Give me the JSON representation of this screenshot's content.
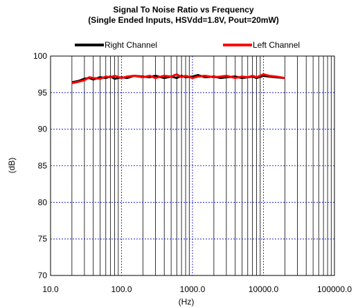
{
  "chart_data": {
    "type": "line",
    "title": "Signal To Noise Ratio vs Frequency",
    "subtitle": "(Single Ended Inputs, HSVdd=1.8V, Pout=20mW)",
    "xlabel": "(Hz)",
    "ylabel": "(dB)",
    "x_scale": "log",
    "xlim": [
      10,
      100000
    ],
    "ylim": [
      70,
      100
    ],
    "x_ticks": [
      "10.0",
      "100.0",
      "1000.0",
      "10000.0",
      "100000.0"
    ],
    "y_ticks": [
      "70",
      "75",
      "80",
      "85",
      "90",
      "95",
      "100"
    ],
    "grid": true,
    "legend_position": "top",
    "series": [
      {
        "name": "Right Channel",
        "color": "#000000",
        "x": [
          20,
          25,
          30,
          35,
          40,
          50,
          60,
          70,
          80,
          100,
          120,
          150,
          200,
          250,
          300,
          400,
          500,
          600,
          700,
          800,
          1000,
          1200,
          1500,
          2000,
          2500,
          3000,
          4000,
          5000,
          6000,
          7000,
          8000,
          10000,
          12000,
          15000,
          20000
        ],
        "y": [
          96.4,
          96.6,
          96.9,
          97.0,
          96.8,
          97.1,
          97.0,
          97.2,
          96.9,
          97.1,
          97.0,
          97.3,
          97.2,
          97.1,
          97.3,
          97.0,
          97.2,
          97.0,
          97.3,
          97.1,
          97.2,
          97.4,
          97.1,
          97.2,
          97.0,
          97.1,
          97.2,
          97.0,
          97.1,
          97.2,
          97.0,
          97.3,
          97.2,
          97.1,
          97.0
        ]
      },
      {
        "name": "Left Channel",
        "color": "#ff0000",
        "x": [
          20,
          25,
          30,
          35,
          40,
          50,
          60,
          70,
          80,
          100,
          120,
          150,
          200,
          250,
          300,
          400,
          500,
          600,
          700,
          800,
          1000,
          1200,
          1500,
          2000,
          2500,
          3000,
          4000,
          5000,
          6000,
          7000,
          8000,
          10000,
          12000,
          15000,
          20000
        ],
        "y": [
          96.3,
          96.5,
          96.7,
          97.1,
          97.0,
          96.9,
          97.2,
          97.1,
          97.3,
          97.0,
          97.2,
          97.3,
          97.1,
          97.3,
          97.0,
          97.3,
          97.2,
          97.5,
          97.1,
          97.3,
          97.0,
          97.2,
          97.3,
          97.1,
          97.2,
          97.3,
          97.0,
          97.2,
          97.1,
          97.3,
          97.1,
          97.5,
          97.3,
          97.2,
          97.0
        ]
      }
    ]
  }
}
